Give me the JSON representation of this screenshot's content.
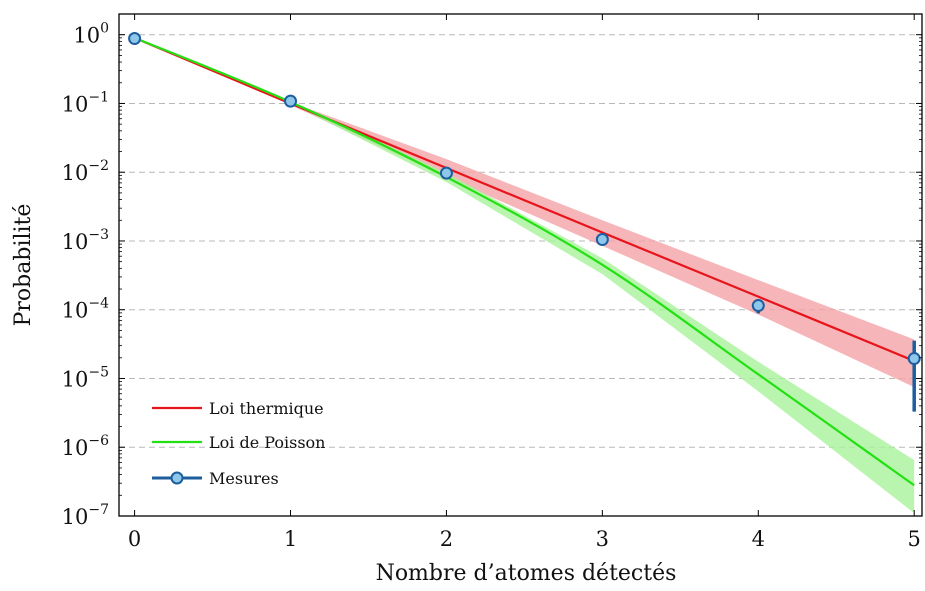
{
  "chart_data": {
    "type": "line",
    "title": "",
    "xlabel": "Nombre d’atomes détectés",
    "ylabel": "Probabilité",
    "y_scale": "log",
    "xlim": [
      -0.1,
      5.05
    ],
    "ylim": [
      1e-07,
      2
    ],
    "x_ticks": [
      0,
      1,
      2,
      3,
      4,
      5
    ],
    "y_ticks": [
      {
        "value": 1,
        "base": "10",
        "exp": "0"
      },
      {
        "value": 0.1,
        "base": "10",
        "exp": "−1"
      },
      {
        "value": 0.01,
        "base": "10",
        "exp": "−2"
      },
      {
        "value": 0.001,
        "base": "10",
        "exp": "−3"
      },
      {
        "value": 0.0001,
        "base": "10",
        "exp": "−4"
      },
      {
        "value": 1e-05,
        "base": "10",
        "exp": "−5"
      },
      {
        "value": 1e-06,
        "base": "10",
        "exp": "−6"
      },
      {
        "value": 1e-07,
        "base": "10",
        "exp": "−7"
      }
    ],
    "grid": "horizontal-dashed",
    "legend_position": "bottom-left",
    "series": [
      {
        "name": "Loi thermique",
        "kind": "line-band",
        "color": "#e8141b",
        "band_color": "#f4a3a6",
        "x": [
          0,
          1,
          2,
          3,
          4,
          5
        ],
        "y": [
          0.9,
          0.1,
          0.0115,
          0.00133,
          0.000155,
          1.8e-05
        ],
        "band_low": [
          0.9,
          0.095,
          0.0084,
          0.00085,
          8.5e-05,
          7.5e-06
        ],
        "band_high": [
          0.9,
          0.105,
          0.0155,
          0.002,
          0.00027,
          3.7e-05
        ]
      },
      {
        "name": "Loi de Poisson",
        "kind": "line-band",
        "color": "#22e012",
        "band_color": "#a8f29a",
        "x": [
          0,
          1,
          2,
          3,
          4,
          5
        ],
        "y": [
          0.9,
          0.105,
          0.0085,
          0.00045,
          1.15e-05,
          2.8e-07
        ],
        "band_low": [
          0.9,
          0.1,
          0.0072,
          0.00033,
          6.5e-06,
          1.1e-07
        ],
        "band_high": [
          0.9,
          0.11,
          0.0098,
          0.00056,
          1.75e-05,
          6.5e-07
        ]
      },
      {
        "name": "Mesures",
        "kind": "points-errorbar",
        "color": "#1d5e9e",
        "marker_fill": "#8fc7ea",
        "x": [
          0,
          1,
          2,
          3,
          4,
          5
        ],
        "y": [
          0.88,
          0.108,
          0.0097,
          0.00105,
          0.000115,
          1.95e-05
        ],
        "err_low": [
          0.88,
          0.108,
          0.0097,
          0.00105,
          8.85e-05,
          3.3e-06
        ],
        "err_high": [
          0.88,
          0.108,
          0.0097,
          0.00105,
          0.000115,
          3.55e-05
        ]
      }
    ]
  }
}
